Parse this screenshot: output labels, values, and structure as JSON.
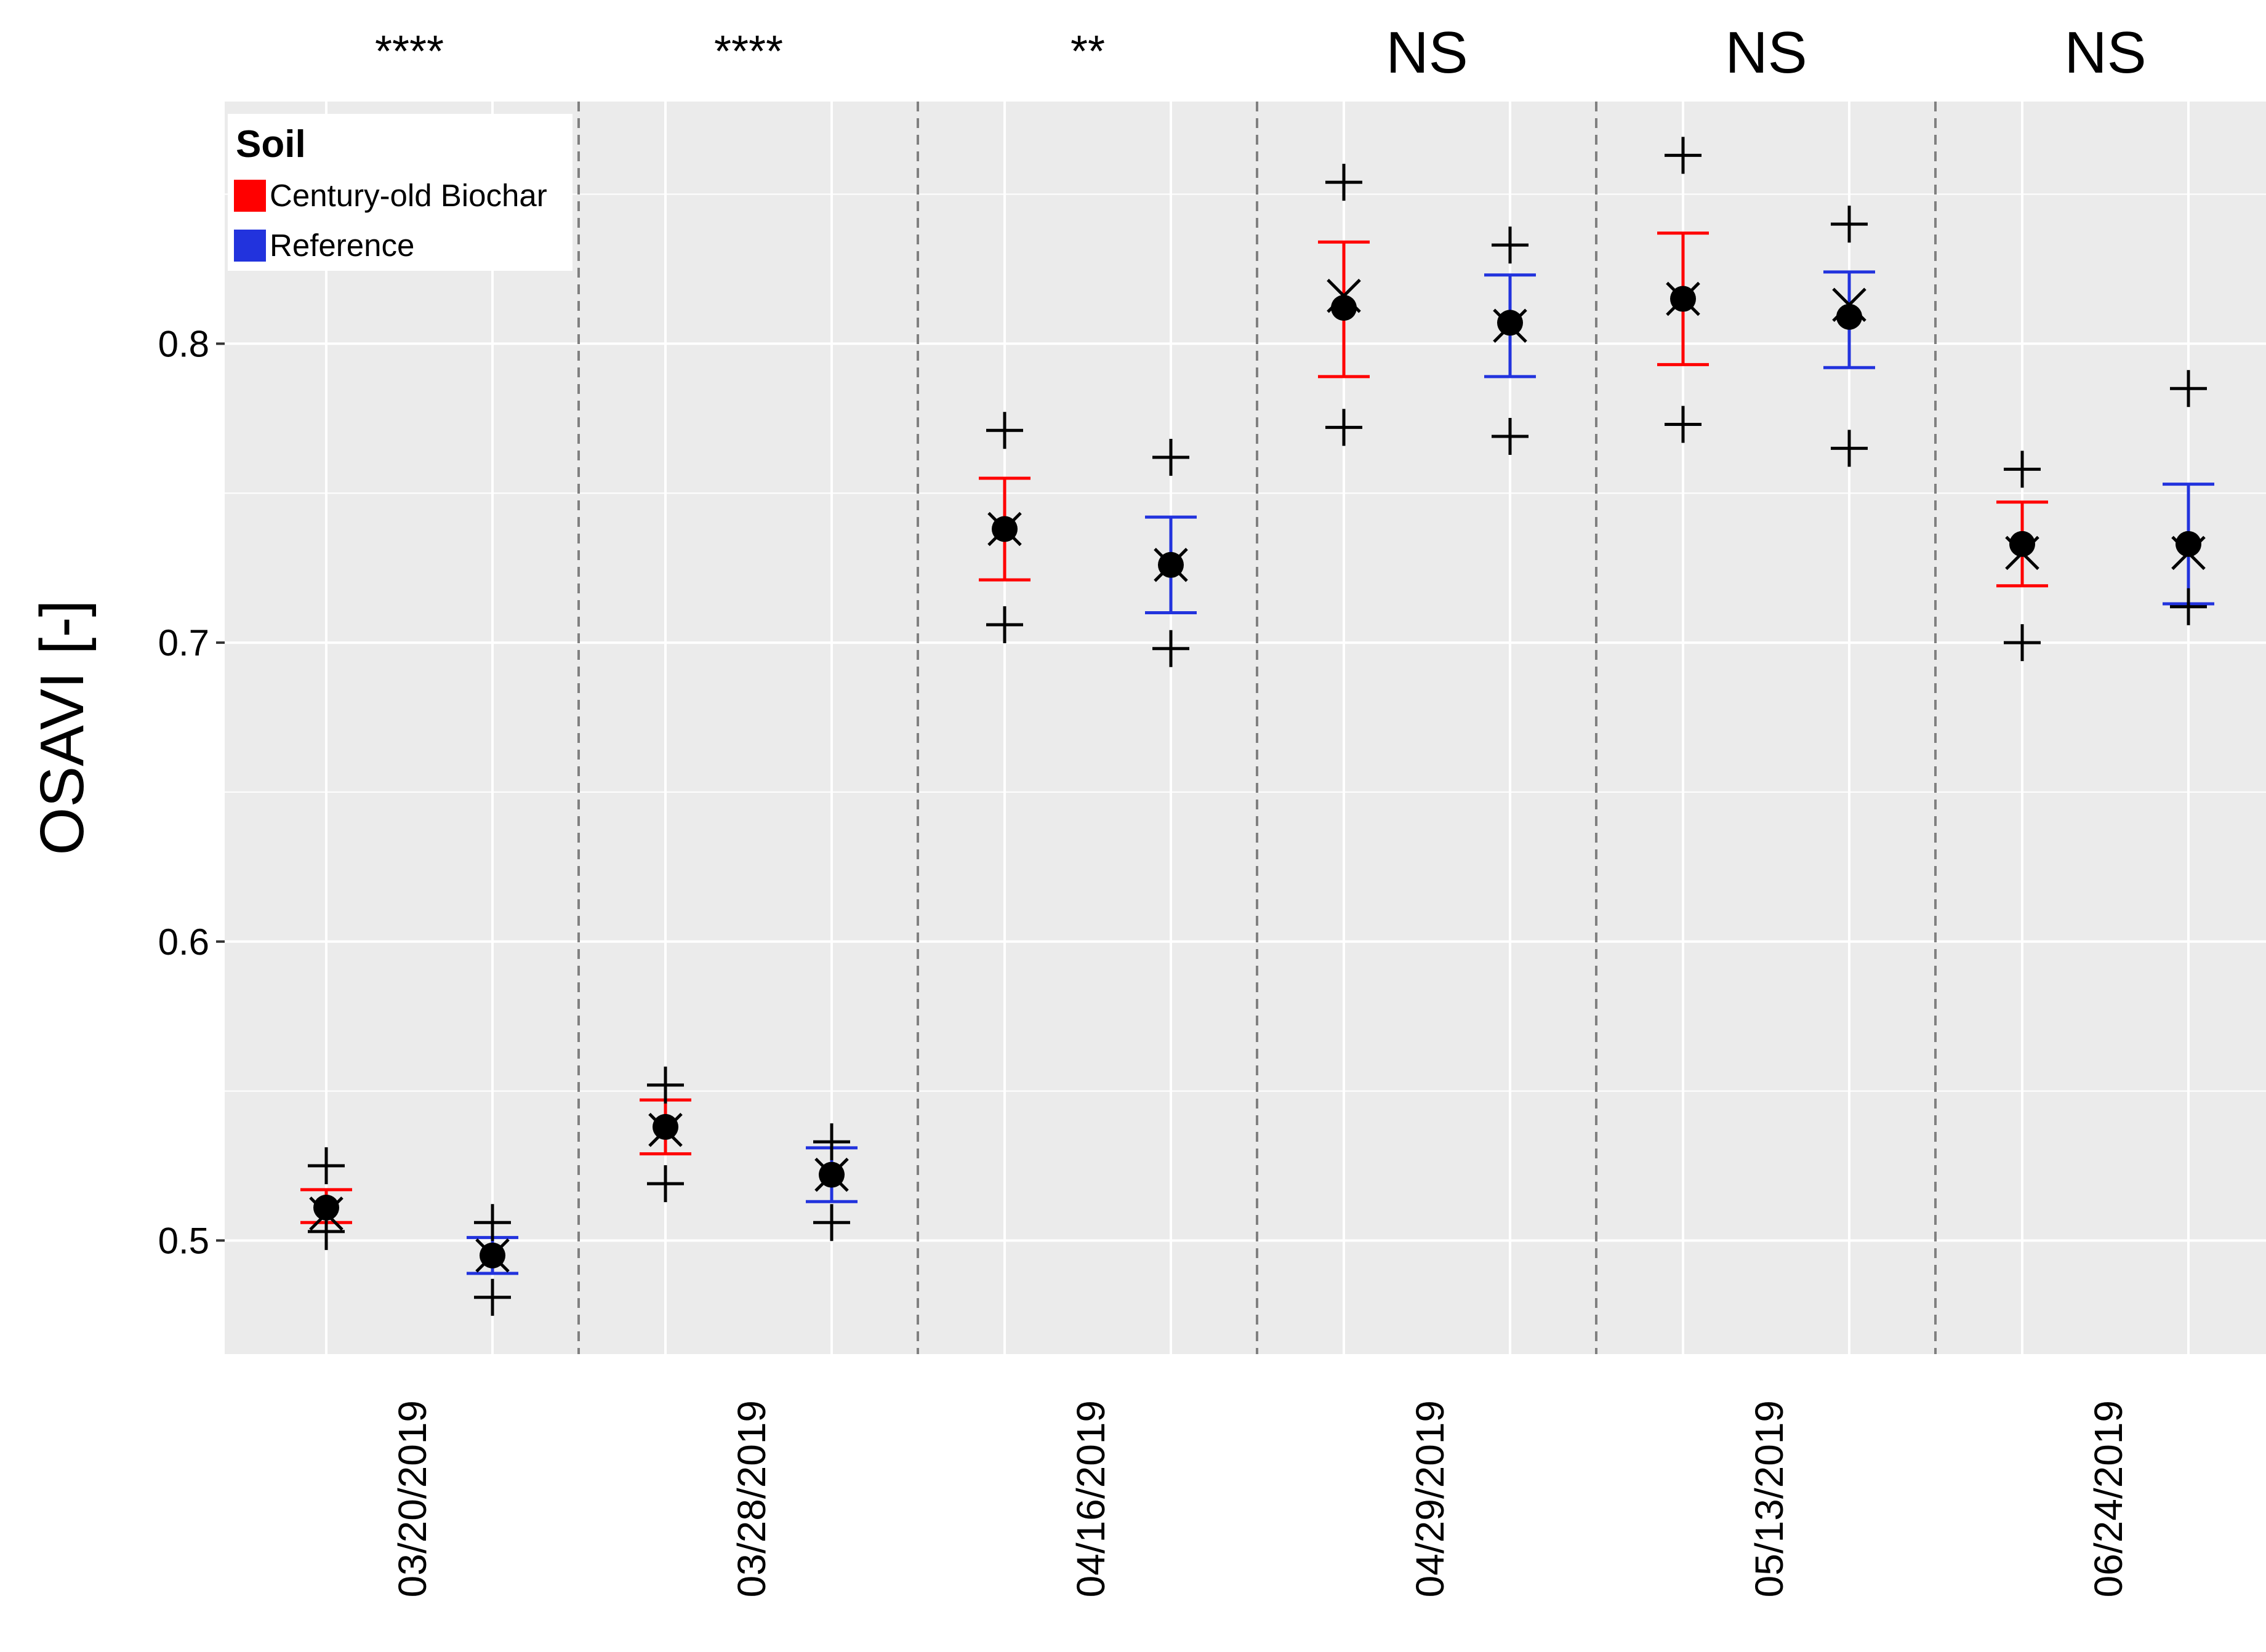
{
  "chart_data": {
    "type": "scatter",
    "title": "",
    "ylabel": "OSAVI [-]",
    "xlabel": "",
    "ylim": [
      0.462,
      0.881
    ],
    "yticks": [
      0.5,
      0.6,
      0.7,
      0.8
    ],
    "ytick_labels": [
      "0.5",
      "0.6",
      "0.7",
      "0.8"
    ],
    "grid": true,
    "legend": {
      "title": "Soil",
      "placement": "top-left",
      "entries": [
        {
          "label": "Century-old Biochar",
          "color": "#ff0000"
        },
        {
          "label": "Reference",
          "color": "#2233dd"
        }
      ]
    },
    "categories": [
      "03/20/2019",
      "03/28/2019",
      "04/16/2019",
      "04/29/2019",
      "05/13/2019",
      "06/24/2019"
    ],
    "significance": [
      "****",
      "****",
      "**",
      "NS",
      "NS",
      "NS"
    ],
    "series": [
      {
        "name": "Century-old Biochar",
        "color": "#ff0000",
        "mean": [
          0.511,
          0.538,
          0.738,
          0.812,
          0.815,
          0.733
        ],
        "median": [
          0.509,
          0.537,
          0.738,
          0.816,
          0.815,
          0.73
        ],
        "err_low": [
          0.506,
          0.529,
          0.721,
          0.789,
          0.793,
          0.719
        ],
        "err_high": [
          0.517,
          0.547,
          0.755,
          0.834,
          0.837,
          0.747
        ],
        "min": [
          0.503,
          0.519,
          0.706,
          0.772,
          0.773,
          0.7
        ],
        "max": [
          0.525,
          0.552,
          0.771,
          0.854,
          0.863,
          0.758
        ]
      },
      {
        "name": "Reference",
        "color": "#2233dd",
        "mean": [
          0.495,
          0.522,
          0.726,
          0.807,
          0.809,
          0.733
        ],
        "median": [
          0.495,
          0.522,
          0.726,
          0.806,
          0.813,
          0.73
        ],
        "err_low": [
          0.489,
          0.513,
          0.71,
          0.789,
          0.792,
          0.713
        ],
        "err_high": [
          0.501,
          0.531,
          0.742,
          0.823,
          0.824,
          0.753
        ],
        "min": [
          0.481,
          0.506,
          0.698,
          0.769,
          0.765,
          0.712
        ],
        "max": [
          0.506,
          0.533,
          0.762,
          0.833,
          0.84,
          0.785
        ]
      }
    ]
  },
  "colors": {
    "panel": "#ebebeb",
    "grid": "#ffffff",
    "separator": "#808080",
    "point": "#000000"
  }
}
